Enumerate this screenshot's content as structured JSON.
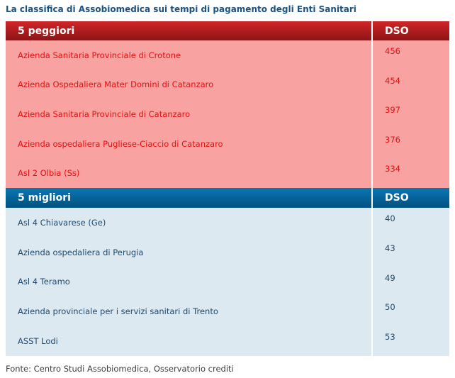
{
  "title": "La classifica di Assobiomedica sui tempi di pagamento degli Enti Sanitari",
  "footer": "Fonte: Centro Studi Assobiomedica, Osservatorio crediti",
  "colors": {
    "title_text": "#1b5280",
    "red_header_top": "#d02628",
    "red_header_bottom": "#8c1416",
    "pink_row_bg": "#f9a2a2",
    "red_row_text": "#e8100f",
    "blue_header_top": "#0b76b4",
    "blue_header_bottom": "#00517e",
    "lightblue_row_bg": "#dde9f0",
    "navy_row_text": "#21496c",
    "header_text": "#ffffff",
    "footer_text": "#3e3e3e"
  },
  "chart_data": {
    "type": "table",
    "title": "La classifica di Assobiomedica sui tempi di pagamento degli Enti Sanitari",
    "value_column": "DSO",
    "source": "Fonte: Centro Studi Assobiomedica, Osservatorio crediti",
    "sections": [
      {
        "id": "worst",
        "header": "5 peggiori",
        "dso_label": "DSO",
        "rows": [
          {
            "name": "Azienda Sanitaria Provinciale di Crotone",
            "dso": 456
          },
          {
            "name": "Azienda Ospedaliera Mater Domini di Catanzaro",
            "dso": 454
          },
          {
            "name": "Azienda Sanitaria Provinciale di Catanzaro",
            "dso": 397
          },
          {
            "name": "Azienda ospedaliera Pugliese-Ciaccio di Catanzaro",
            "dso": 376
          },
          {
            "name": "Asl 2 Olbia (Ss)",
            "dso": 334
          }
        ]
      },
      {
        "id": "best",
        "header": "5 migliori",
        "dso_label": "DSO",
        "rows": [
          {
            "name": "Asl 4 Chiavarese (Ge)",
            "dso": 40
          },
          {
            "name": "Azienda ospedaliera di Perugia",
            "dso": 43
          },
          {
            "name": "Asl 4 Teramo",
            "dso": 49
          },
          {
            "name": "Azienda provinciale per i servizi sanitari di Trento",
            "dso": 50
          },
          {
            "name": "ASST Lodi",
            "dso": 53
          }
        ]
      }
    ]
  }
}
